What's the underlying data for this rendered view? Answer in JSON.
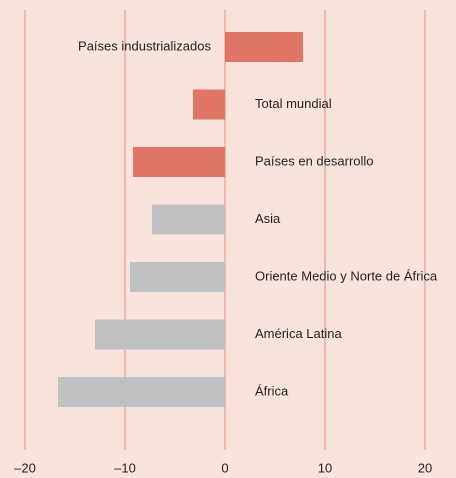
{
  "chart_data": {
    "type": "bar",
    "orientation": "horizontal",
    "categories": [
      "Países industrializados",
      "Total mundial",
      "Países en desarrollo",
      "Asia",
      "Oriente Medio y Norte de África",
      "América Latina",
      "África"
    ],
    "values": [
      7.8,
      -3.2,
      -9.2,
      -7.3,
      -9.5,
      -13,
      -16.7
    ],
    "colors": [
      "#e07565",
      "#e07565",
      "#e07565",
      "#bfc1c3",
      "#bfc1c3",
      "#bfc1c3",
      "#bfc1c3"
    ],
    "xlim": [
      -20,
      20
    ],
    "xticks": [
      {
        "value": -20,
        "label": "–20"
      },
      {
        "value": -10,
        "label": "–10"
      },
      0,
      10,
      20
    ],
    "grid": true,
    "grid_color": "#e88a80"
  }
}
